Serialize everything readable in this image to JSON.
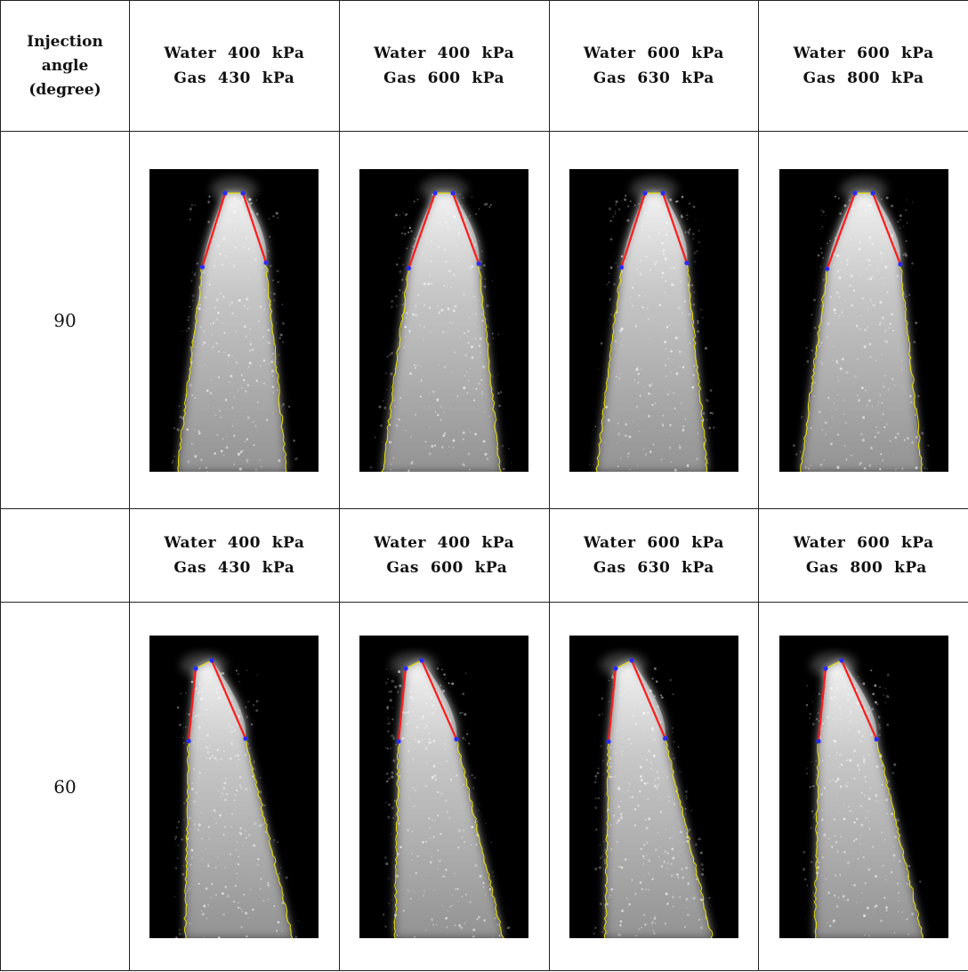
{
  "table": {
    "header_col": {
      "line1": "Injection",
      "line2": "angle",
      "line3": "(degree)"
    },
    "conditions_top": [
      {
        "water": "Water  400  kPa",
        "gas": "Gas  430  kPa"
      },
      {
        "water": "Water  400  kPa",
        "gas": "Gas  600  kPa"
      },
      {
        "water": "Water  600  kPa",
        "gas": "Gas  630  kPa"
      },
      {
        "water": "Water  600  kPa",
        "gas": "Gas  800  kPa"
      }
    ],
    "conditions_bottom": [
      {
        "water": "Water  400  kPa",
        "gas": "Gas  430  kPa"
      },
      {
        "water": "Water  400  kPa",
        "gas": " Gas  600  kPa"
      },
      {
        "water": "Water  600  kPa",
        "gas": "Gas  630  kPa"
      },
      {
        "water": "Water  600  kPa",
        "gas": " Gas  800  kPa"
      }
    ],
    "rows": [
      {
        "angle": "90"
      },
      {
        "angle": "60"
      }
    ]
  },
  "colors": {
    "spray_background": "#000000",
    "boundary_outline": "#e8e000",
    "cone_edge": "#ff1a1a",
    "marker": "#2a2aff"
  }
}
